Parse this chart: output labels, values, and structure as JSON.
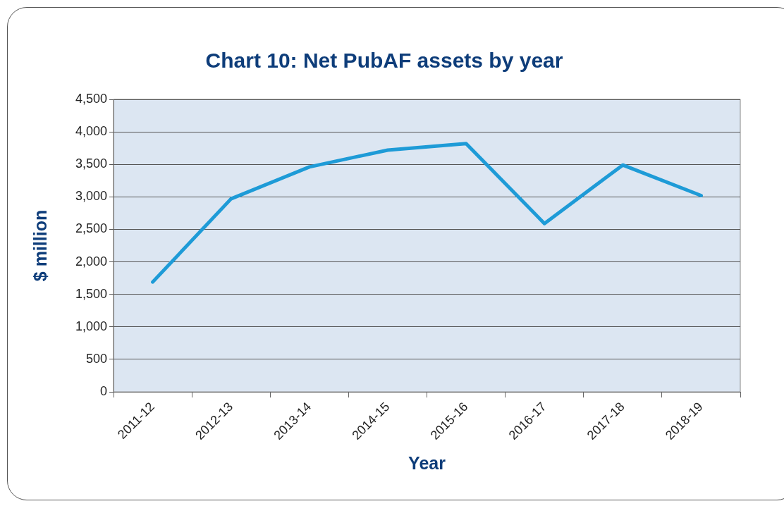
{
  "chart_data": {
    "type": "line",
    "title": "Chart 10: Net PubAF assets by year",
    "xlabel": "Year",
    "ylabel": "$ million",
    "categories": [
      "2011-12",
      "2012-13",
      "2013-14",
      "2014-15",
      "2015-16",
      "2016-17",
      "2017-18",
      "2018-19"
    ],
    "series": [
      {
        "color": "#1e9bd7",
        "values": [
          1690,
          2970,
          3460,
          3720,
          3820,
          2590,
          3490,
          3020
        ]
      }
    ],
    "ylim": [
      0,
      4500
    ],
    "yticks": [
      {
        "value": 0,
        "label": "0"
      },
      {
        "value": 500,
        "label": "500"
      },
      {
        "value": 1000,
        "label": "1,000"
      },
      {
        "value": 1500,
        "label": "1,500"
      },
      {
        "value": 2000,
        "label": "2,000"
      },
      {
        "value": 2500,
        "label": "2,500"
      },
      {
        "value": 3000,
        "label": "3,000"
      },
      {
        "value": 3500,
        "label": "3,500"
      },
      {
        "value": 4000,
        "label": "4,000"
      },
      {
        "value": 4500,
        "label": "4,500"
      }
    ],
    "grid": "y",
    "legend": false,
    "marker": "none",
    "line_style": "solid"
  }
}
